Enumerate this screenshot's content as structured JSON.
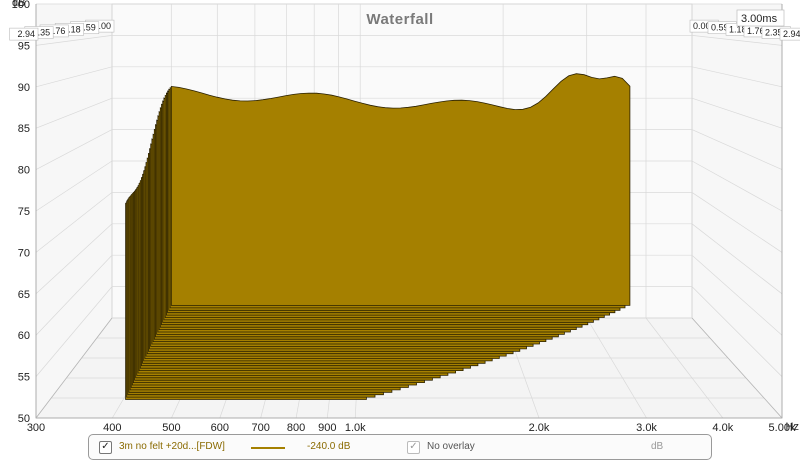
{
  "chart_data": {
    "type": "waterfall",
    "title": "Waterfall",
    "y_unit": "dB",
    "x_unit": "Hz",
    "x_scale": "log",
    "xlim": [
      300,
      5000
    ],
    "ylim": [
      50,
      100
    ],
    "x_ticks": [
      "300",
      "400",
      "500",
      "600",
      "700",
      "800",
      "900",
      "1.0k",
      "2.0k",
      "3.0k",
      "4.0k",
      "5.00k"
    ],
    "y_ticks": [
      "50",
      "55",
      "60",
      "65",
      "70",
      "75",
      "80",
      "85",
      "90",
      "95",
      "100"
    ],
    "time_unit": "ms",
    "time_max_label": "3.00",
    "time_labels": [
      "0.00",
      "0.59",
      "1.18",
      "1.76",
      "2.35",
      "2.94"
    ],
    "grid": true,
    "slices": 40,
    "freq_start": 400,
    "freq_end": 3700,
    "fill_color": "#a58000",
    "edge_color": "#2a2000",
    "legend": {
      "series_name": "3m no felt +20d...[FDW]",
      "level": "-240.0 dB",
      "overlay": "No overlay",
      "unit": "dB"
    }
  }
}
